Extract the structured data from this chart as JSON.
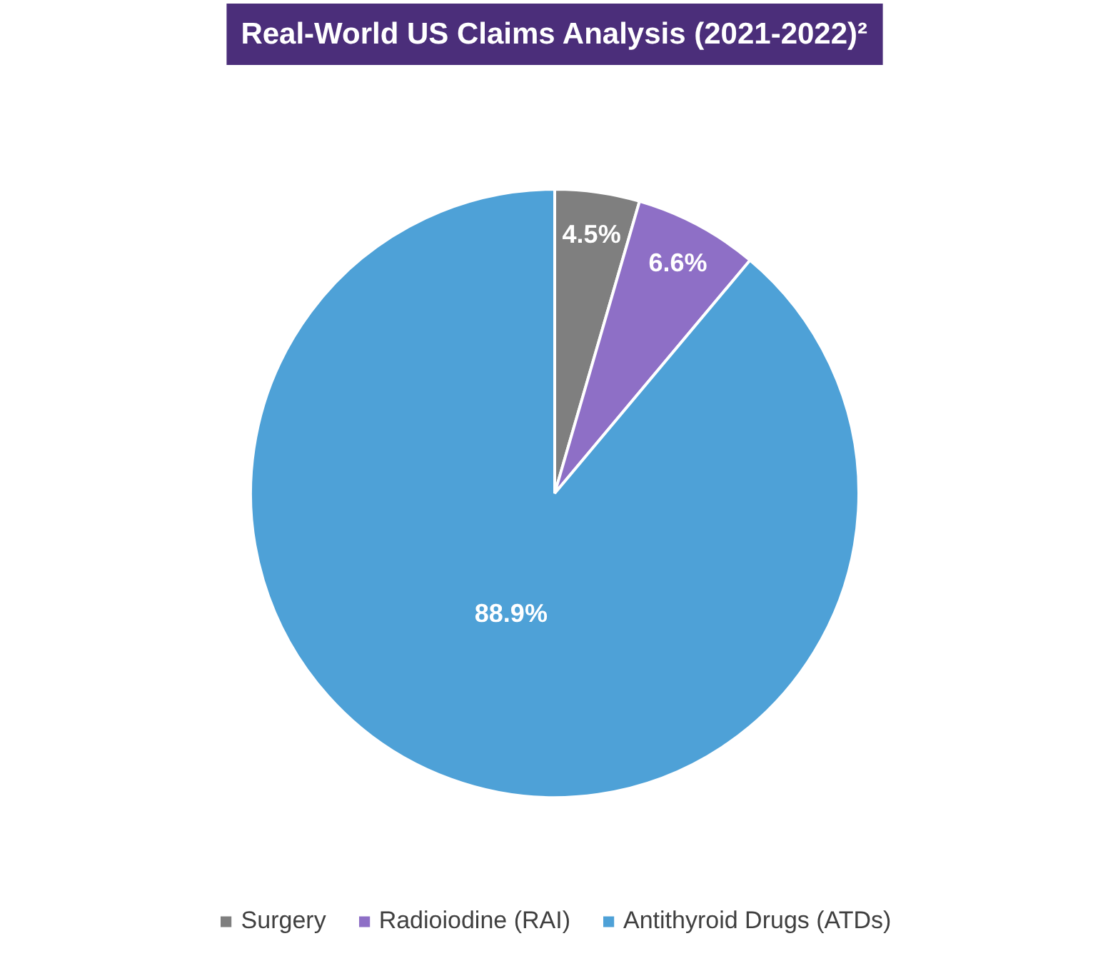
{
  "chart_data": {
    "type": "pie",
    "title": "Real-World US Claims Analysis (2021-2022)²",
    "categories": [
      "Surgery",
      "Radioiodine (RAI)",
      "Antithyroid Drugs (ATDs)"
    ],
    "values": [
      4.5,
      6.6,
      88.9
    ],
    "colors": [
      "#7f7f7f",
      "#8e6fc6",
      "#4ea1d7"
    ],
    "value_labels": [
      "4.5%",
      "6.6%",
      "88.9%"
    ],
    "legend": "bottom"
  }
}
